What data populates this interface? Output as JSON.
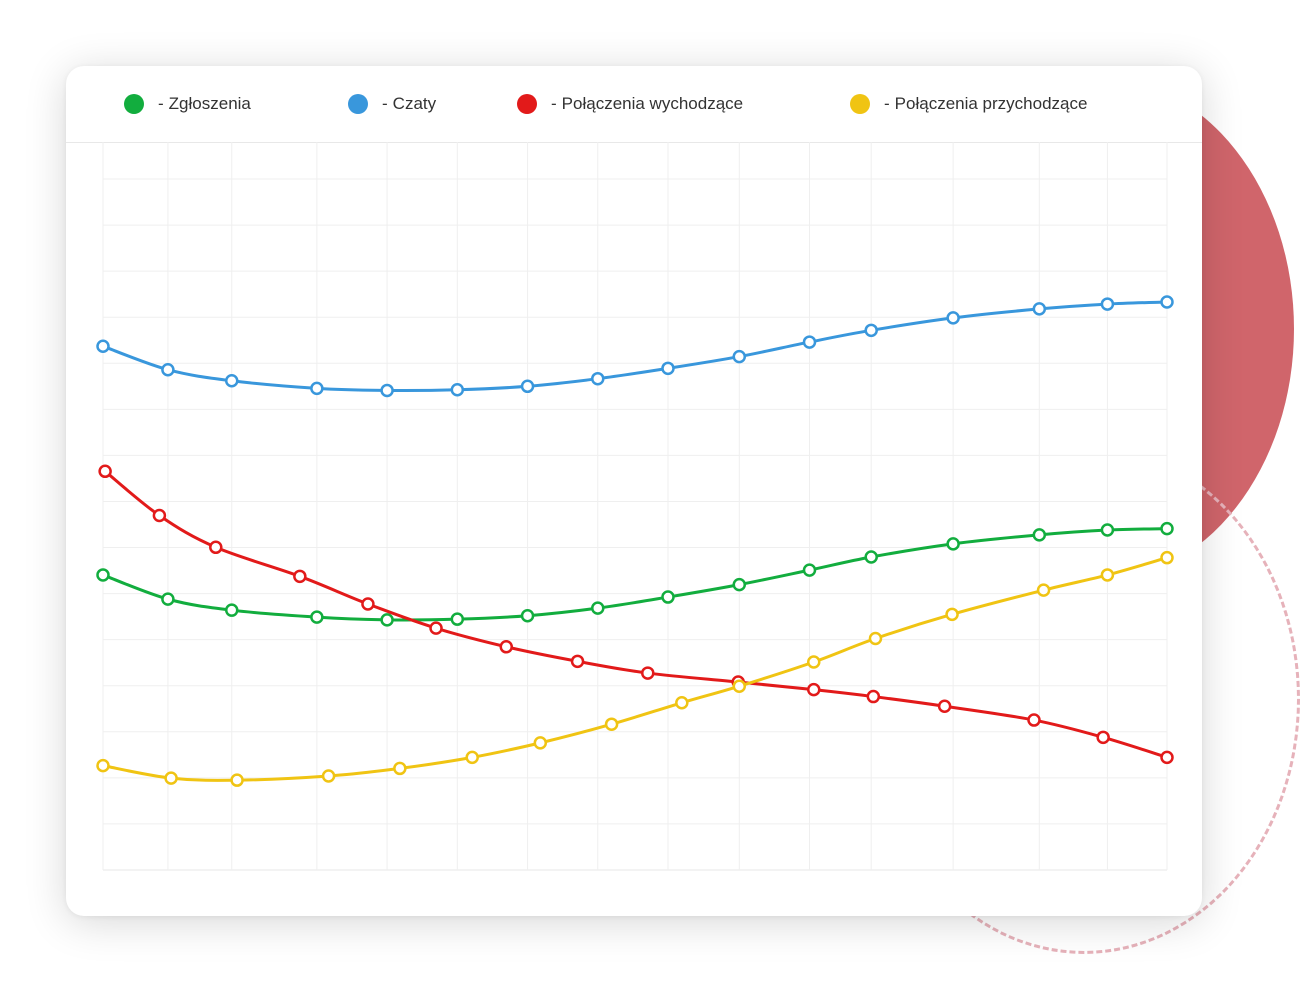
{
  "colors": {
    "green": "#12ad3e",
    "blue": "#3997dc",
    "red": "#e21a1a",
    "yellow": "#f0c413",
    "grid": "#efefef",
    "accent_circle": "#d0656b",
    "dashed_ring": "#e6b2ba"
  },
  "legend": [
    {
      "label": "Zgłoszenia",
      "color": "#12ad3e"
    },
    {
      "label": "Czaty",
      "color": "#3997dc"
    },
    {
      "label": "Połączenia wychodzące",
      "color": "#e21a1a"
    },
    {
      "label": "Połączenia przychodzące",
      "color": "#f0c413"
    }
  ],
  "chart_data": {
    "type": "line",
    "title": "",
    "xlabel": "",
    "ylabel": "",
    "grid": true,
    "legend_position": "top",
    "xlim": [
      0,
      100
    ],
    "ylim": [
      0,
      100
    ],
    "series": [
      {
        "name": "Zgłoszenia",
        "color": "#12ad3e",
        "x": [
          0,
          6.1,
          12.1,
          20.1,
          26.7,
          33.3,
          39.9,
          46.5,
          53.1,
          59.8,
          66.4,
          72.2,
          79.9,
          88.0,
          94.4,
          100
        ],
        "y": [
          42.7,
          39.2,
          37.6,
          36.6,
          36.2,
          36.3,
          36.8,
          37.9,
          39.5,
          41.3,
          43.4,
          45.3,
          47.2,
          48.5,
          49.2,
          49.4
        ]
      },
      {
        "name": "Czaty",
        "color": "#3997dc",
        "x": [
          0,
          6.1,
          12.1,
          20.1,
          26.7,
          33.3,
          39.9,
          46.5,
          53.1,
          59.8,
          66.4,
          72.2,
          79.9,
          88.0,
          94.4,
          100
        ],
        "y": [
          75.8,
          72.4,
          70.8,
          69.7,
          69.4,
          69.5,
          70.0,
          71.1,
          72.6,
          74.3,
          76.4,
          78.1,
          79.9,
          81.2,
          81.9,
          82.2
        ]
      },
      {
        "name": "Połączenia wychodzące",
        "color": "#e21a1a",
        "x": [
          0.2,
          5.3,
          10.6,
          18.5,
          24.9,
          31.3,
          37.9,
          44.6,
          51.2,
          59.7,
          66.8,
          72.4,
          79.1,
          87.5,
          94.0,
          100
        ],
        "y": [
          57.7,
          51.3,
          46.7,
          42.5,
          38.5,
          35.0,
          32.3,
          30.2,
          28.5,
          27.2,
          26.1,
          25.1,
          23.7,
          21.7,
          19.2,
          16.3
        ]
      },
      {
        "name": "Połączenia przychodzące",
        "color": "#f0c413",
        "x": [
          0,
          6.4,
          12.6,
          21.2,
          27.9,
          34.7,
          41.1,
          47.8,
          54.4,
          59.8,
          66.8,
          72.6,
          79.8,
          88.4,
          94.4,
          100
        ],
        "y": [
          15.1,
          13.3,
          13.0,
          13.6,
          14.7,
          16.3,
          18.4,
          21.1,
          24.2,
          26.6,
          30.1,
          33.5,
          37.0,
          40.5,
          42.7,
          45.2
        ]
      }
    ]
  }
}
